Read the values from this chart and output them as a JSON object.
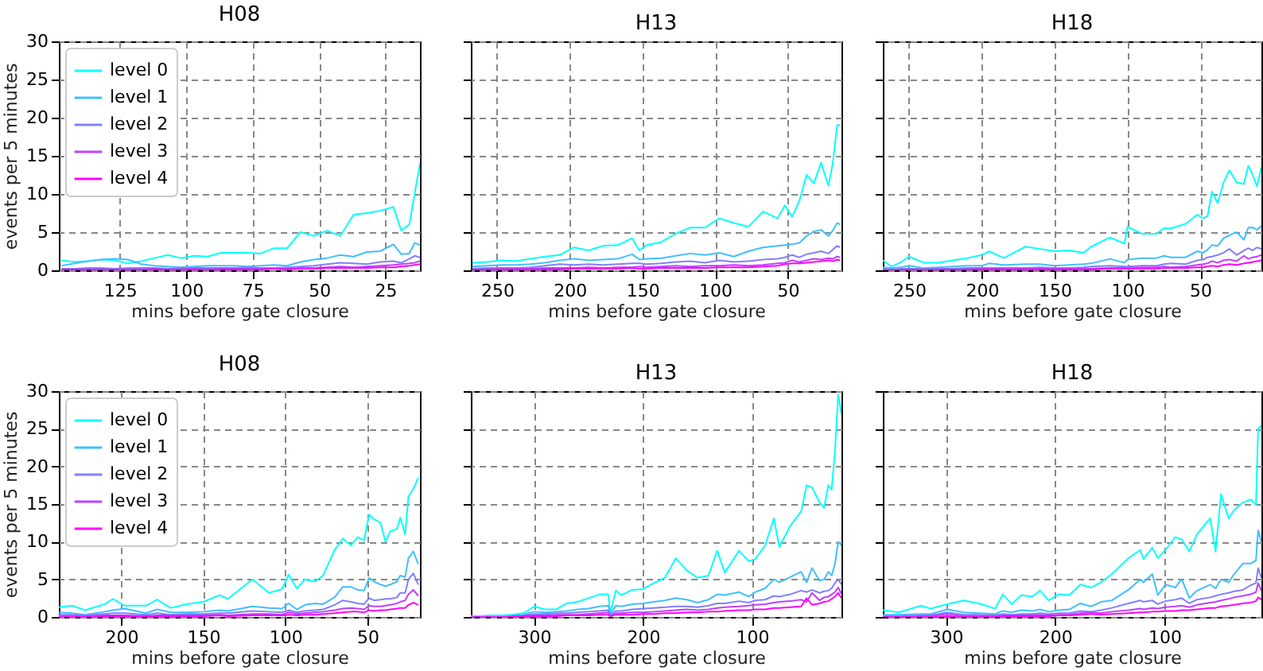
{
  "chart_data": [
    {
      "type": "line",
      "title": "H08",
      "xlabel": "mins before gate closure",
      "ylabel": "events per 5 minutes",
      "xlim": [
        148,
        12
      ],
      "xticks": [
        125,
        100,
        75,
        50,
        25
      ],
      "ylim": [
        0,
        30
      ],
      "yticks": [
        0,
        5,
        10,
        15,
        20,
        25,
        30
      ],
      "grid": true,
      "legend": "top left",
      "x": [
        147,
        142,
        137,
        132,
        127,
        122,
        117,
        112,
        107,
        102,
        97,
        92,
        87,
        82,
        77,
        72,
        67,
        62,
        57,
        52,
        47,
        42,
        37,
        32,
        27,
        22,
        19,
        16,
        14,
        12
      ],
      "series": [
        {
          "name": "level 0",
          "color": "#00ffff",
          "values": [
            1.3,
            1.1,
            1.2,
            1.4,
            1.3,
            0.9,
            1.2,
            1.6,
            2.0,
            1.6,
            1.9,
            1.8,
            2.3,
            2.3,
            2.3,
            2.2,
            2.9,
            2.9,
            5.0,
            4.5,
            5.2,
            4.5,
            7.3,
            7.5,
            7.8,
            8.3,
            5.2,
            6.0,
            10.0,
            14.0
          ]
        },
        {
          "name": "level 1",
          "color": "#40bfff",
          "values": [
            0.6,
            0.9,
            1.2,
            1.4,
            1.5,
            1.4,
            0.8,
            0.6,
            0.5,
            0.4,
            0.5,
            0.6,
            0.6,
            0.6,
            0.5,
            0.6,
            0.7,
            0.6,
            1.1,
            1.4,
            1.6,
            2.0,
            1.8,
            2.4,
            2.5,
            3.4,
            2.1,
            2.2,
            3.6,
            3.3
          ]
        },
        {
          "name": "level 2",
          "color": "#8080ff",
          "values": [
            0.2,
            0.2,
            0.3,
            0.3,
            0.2,
            0.3,
            0.3,
            0.3,
            0.2,
            0.3,
            0.3,
            0.3,
            0.3,
            0.3,
            0.4,
            0.3,
            0.3,
            0.4,
            0.5,
            0.6,
            0.8,
            1.0,
            0.9,
            0.8,
            1.1,
            1.2,
            1.0,
            1.5,
            1.9,
            1.7
          ]
        },
        {
          "name": "level 3",
          "color": "#bf40ff",
          "values": [
            0.1,
            0.1,
            0.1,
            0.1,
            0.1,
            0.1,
            0.1,
            0.2,
            0.1,
            0.1,
            0.2,
            0.1,
            0.2,
            0.2,
            0.2,
            0.2,
            0.2,
            0.2,
            0.3,
            0.3,
            0.4,
            0.5,
            0.4,
            0.5,
            0.6,
            0.7,
            0.8,
            0.9,
            1.0,
            1.2
          ]
        },
        {
          "name": "level 4",
          "color": "#ff00ff",
          "values": [
            0.1,
            0.1,
            0.1,
            0.1,
            0.1,
            0.1,
            0.1,
            0.1,
            0.1,
            0.1,
            0.1,
            0.1,
            0.1,
            0.1,
            0.1,
            0.1,
            0.2,
            0.1,
            0.2,
            0.2,
            0.3,
            0.3,
            0.3,
            0.3,
            0.4,
            0.4,
            0.5,
            0.6,
            0.7,
            0.8
          ]
        }
      ]
    },
    {
      "type": "line",
      "title": "H13",
      "xlabel": "mins before gate closure",
      "xlim": [
        268,
        13
      ],
      "xticks": [
        250,
        200,
        150,
        100,
        50
      ],
      "ylim": [
        0,
        30
      ],
      "yticks": [
        0,
        5,
        10,
        15,
        20,
        25,
        30
      ],
      "grid": true,
      "tick_labels": "x",
      "x": [
        267,
        257,
        247,
        237,
        227,
        217,
        207,
        197,
        187,
        177,
        167,
        157,
        152,
        147,
        137,
        127,
        117,
        107,
        97,
        87,
        77,
        67,
        57,
        52,
        47,
        42,
        37,
        32,
        27,
        22,
        19,
        16,
        14
      ],
      "series": [
        {
          "color": "#00ffff",
          "values": [
            1.0,
            1.1,
            1.3,
            1.2,
            1.5,
            1.8,
            2.0,
            3.0,
            2.6,
            3.2,
            3.3,
            4.2,
            2.6,
            3.3,
            3.7,
            4.8,
            5.6,
            5.6,
            6.8,
            6.2,
            5.7,
            7.7,
            6.8,
            8.5,
            7.0,
            9.1,
            12.5,
            11.4,
            14.1,
            11.1,
            14.0,
            19.0,
            19.0
          ]
        },
        {
          "color": "#40bfff",
          "values": [
            0.5,
            0.6,
            0.7,
            0.7,
            0.8,
            1.0,
            1.3,
            1.5,
            1.3,
            1.4,
            1.5,
            2.1,
            1.4,
            1.5,
            1.6,
            1.9,
            2.2,
            2.0,
            2.3,
            1.8,
            2.5,
            3.0,
            3.2,
            3.3,
            3.4,
            3.6,
            4.5,
            5.1,
            5.3,
            4.5,
            5.2,
            6.2,
            6.0
          ]
        },
        {
          "color": "#8080ff",
          "values": [
            0.2,
            0.3,
            0.3,
            0.3,
            0.4,
            0.6,
            0.8,
            0.7,
            0.8,
            0.7,
            0.8,
            0.9,
            0.9,
            0.8,
            0.9,
            1.1,
            1.2,
            1.0,
            1.3,
            1.1,
            1.2,
            1.4,
            1.5,
            1.7,
            2.0,
            1.7,
            2.1,
            2.3,
            2.5,
            2.2,
            2.7,
            3.2,
            3.0
          ]
        },
        {
          "color": "#bf40ff",
          "values": [
            0.1,
            0.1,
            0.2,
            0.2,
            0.2,
            0.3,
            0.3,
            0.3,
            0.4,
            0.3,
            0.4,
            0.4,
            0.5,
            0.4,
            0.5,
            0.6,
            0.5,
            0.6,
            0.6,
            0.7,
            0.6,
            0.7,
            0.9,
            1.0,
            1.3,
            1.1,
            1.3,
            1.5,
            1.4,
            1.6,
            1.5,
            1.8,
            1.7
          ]
        },
        {
          "color": "#ff00ff",
          "values": [
            0.1,
            0.1,
            0.1,
            0.1,
            0.1,
            0.1,
            0.1,
            0.2,
            0.2,
            0.2,
            0.2,
            0.3,
            0.2,
            0.2,
            0.3,
            0.3,
            0.3,
            0.3,
            0.4,
            0.4,
            0.4,
            0.5,
            0.6,
            0.8,
            0.9,
            0.9,
            1.0,
            1.1,
            1.2,
            1.3,
            1.2,
            1.4,
            1.3
          ]
        }
      ]
    },
    {
      "type": "line",
      "title": "H18",
      "xlabel": "mins before gate closure",
      "xlim": [
        268,
        8
      ],
      "xticks": [
        250,
        200,
        150,
        100,
        50
      ],
      "ylim": [
        0,
        30
      ],
      "yticks": [
        0,
        5,
        10,
        15,
        20,
        25,
        30
      ],
      "grid": true,
      "tick_labels": "x",
      "x": [
        268,
        262,
        256,
        250,
        240,
        230,
        220,
        210,
        200,
        195,
        185,
        170,
        160,
        150,
        140,
        130,
        125,
        112,
        102,
        100,
        90,
        80,
        75,
        70,
        60,
        52,
        48,
        45,
        42,
        38,
        34,
        30,
        25,
        20,
        17,
        14,
        11,
        8
      ],
      "series": [
        {
          "color": "#00ffff",
          "values": [
            1.3,
            0.5,
            1.0,
            1.8,
            1.0,
            1.0,
            1.3,
            1.6,
            2.0,
            2.5,
            1.6,
            3.1,
            2.8,
            2.5,
            2.6,
            2.3,
            3.1,
            4.3,
            3.5,
            5.7,
            4.8,
            4.8,
            5.5,
            5.5,
            6.1,
            7.3,
            6.8,
            7.1,
            10.3,
            8.8,
            11.5,
            13.1,
            11.5,
            11.3,
            13.7,
            12.5,
            11.0,
            13.5
          ]
        },
        {
          "color": "#40bfff",
          "values": [
            0.4,
            0.3,
            0.4,
            0.6,
            0.3,
            0.4,
            0.5,
            0.6,
            0.6,
            0.9,
            0.7,
            0.8,
            0.8,
            0.6,
            0.7,
            0.8,
            0.9,
            1.5,
            1.0,
            1.4,
            1.6,
            1.6,
            1.9,
            1.7,
            1.7,
            2.5,
            2.3,
            2.7,
            3.3,
            3.2,
            4.2,
            4.6,
            5.0,
            4.0,
            5.6,
            5.6,
            5.3,
            5.8
          ]
        },
        {
          "color": "#8080ff",
          "values": [
            0.2,
            0.1,
            0.2,
            0.2,
            0.2,
            0.2,
            0.2,
            0.3,
            0.3,
            0.3,
            0.3,
            0.3,
            0.4,
            0.3,
            0.3,
            0.4,
            0.5,
            0.6,
            0.5,
            0.5,
            0.6,
            0.6,
            0.8,
            0.9,
            0.8,
            1.3,
            1.4,
            1.7,
            1.8,
            2.0,
            2.3,
            2.8,
            2.0,
            2.6,
            2.9,
            2.6,
            3.0,
            2.8
          ]
        },
        {
          "color": "#bf40ff",
          "values": [
            0.1,
            0.1,
            0.1,
            0.1,
            0.1,
            0.1,
            0.1,
            0.1,
            0.2,
            0.2,
            0.2,
            0.2,
            0.2,
            0.2,
            0.2,
            0.2,
            0.2,
            0.3,
            0.3,
            0.3,
            0.4,
            0.4,
            0.5,
            0.4,
            0.5,
            0.7,
            0.8,
            0.9,
            1.2,
            1.0,
            1.3,
            1.4,
            1.2,
            1.9,
            1.5,
            1.7,
            1.8,
            2.0
          ]
        },
        {
          "color": "#ff00ff",
          "values": [
            0.0,
            0.0,
            0.0,
            0.0,
            0.0,
            0.1,
            0.1,
            0.1,
            0.1,
            0.1,
            0.1,
            0.1,
            0.1,
            0.1,
            0.1,
            0.1,
            0.1,
            0.2,
            0.2,
            0.2,
            0.2,
            0.2,
            0.3,
            0.3,
            0.3,
            0.4,
            0.4,
            0.5,
            0.6,
            0.5,
            0.7,
            0.8,
            0.7,
            0.9,
            1.0,
            1.1,
            1.2,
            1.3
          ]
        }
      ]
    },
    {
      "type": "line",
      "title": "H08",
      "xlabel": "mins before gate closure",
      "ylabel": "events per 5 minutes",
      "xlim": [
        238,
        18
      ],
      "xticks": [
        200,
        150,
        100,
        50
      ],
      "ylim": [
        0,
        30
      ],
      "yticks": [
        0,
        5,
        10,
        15,
        20,
        25,
        30
      ],
      "grid": true,
      "legend": "top left",
      "x": [
        238,
        230,
        222,
        210,
        205,
        198,
        185,
        178,
        170,
        160,
        150,
        140,
        135,
        120,
        110,
        102,
        98,
        93,
        88,
        82,
        77,
        70,
        65,
        60,
        56,
        52,
        49,
        46,
        42,
        39,
        36,
        32,
        30,
        27,
        25,
        22,
        19
      ],
      "series": [
        {
          "name": "level 0",
          "color": "#00ffff",
          "values": [
            1.3,
            1.5,
            0.9,
            1.7,
            2.4,
            1.5,
            1.5,
            2.3,
            1.2,
            1.7,
            2.0,
            2.9,
            2.4,
            5.0,
            3.2,
            3.7,
            5.6,
            3.8,
            5.0,
            4.7,
            5.5,
            8.9,
            10.4,
            9.5,
            10.6,
            10.2,
            13.6,
            13.0,
            12.5,
            10.0,
            11.4,
            11.7,
            13.2,
            11.0,
            16.0,
            17.0,
            18.5
          ]
        },
        {
          "name": "level 1",
          "color": "#40bfff",
          "values": [
            0.6,
            0.5,
            0.3,
            0.7,
            0.9,
            1.1,
            0.5,
            1.0,
            0.6,
            0.6,
            0.7,
            0.9,
            0.8,
            1.4,
            1.2,
            1.1,
            1.8,
            1.0,
            1.6,
            1.8,
            1.7,
            2.6,
            4.0,
            4.0,
            3.6,
            3.5,
            5.2,
            4.7,
            4.3,
            4.1,
            4.3,
            4.7,
            5.5,
            5.3,
            7.8,
            8.7,
            7.0
          ]
        },
        {
          "name": "level 2",
          "color": "#8080ff",
          "values": [
            0.3,
            0.3,
            0.2,
            0.4,
            0.5,
            0.5,
            0.3,
            0.5,
            0.3,
            0.4,
            0.4,
            0.5,
            0.5,
            0.8,
            0.7,
            0.6,
            0.9,
            0.6,
            0.8,
            0.9,
            1.0,
            1.6,
            2.2,
            2.0,
            1.8,
            1.7,
            2.5,
            2.2,
            2.3,
            2.4,
            2.4,
            2.6,
            3.2,
            3.2,
            5.0,
            5.8,
            4.3
          ]
        },
        {
          "name": "level 3",
          "color": "#bf40ff",
          "values": [
            0.1,
            0.1,
            0.1,
            0.2,
            0.2,
            0.2,
            0.1,
            0.2,
            0.2,
            0.2,
            0.2,
            0.3,
            0.2,
            0.4,
            0.4,
            0.3,
            0.6,
            0.4,
            0.5,
            0.6,
            0.7,
            0.9,
            1.1,
            1.2,
            1.1,
            1.0,
            1.5,
            1.4,
            1.4,
            1.5,
            1.6,
            1.8,
            2.0,
            2.2,
            3.0,
            3.6,
            2.8
          ]
        },
        {
          "name": "level 4",
          "color": "#ff00ff",
          "values": [
            0.0,
            0.0,
            0.0,
            0.1,
            0.1,
            0.1,
            0.1,
            0.1,
            0.1,
            0.1,
            0.1,
            0.2,
            0.1,
            0.2,
            0.2,
            0.2,
            0.3,
            0.2,
            0.3,
            0.3,
            0.4,
            0.5,
            0.6,
            0.7,
            0.7,
            0.6,
            0.9,
            0.8,
            0.9,
            0.9,
            1.0,
            1.1,
            1.2,
            1.2,
            1.6,
            1.9,
            1.6
          ]
        }
      ]
    },
    {
      "type": "line",
      "title": "H13",
      "xlabel": "mins before gate closure",
      "xlim": [
        358,
        18
      ],
      "xticks": [
        300,
        200,
        100
      ],
      "ylim": [
        0,
        30
      ],
      "yticks": [
        0,
        5,
        10,
        15,
        20,
        25,
        30
      ],
      "grid": true,
      "tick_labels": "x",
      "x": [
        358,
        350,
        340,
        330,
        320,
        310,
        305,
        300,
        290,
        280,
        270,
        260,
        250,
        240,
        232,
        230,
        225,
        220,
        210,
        200,
        190,
        180,
        170,
        160,
        150,
        140,
        132,
        125,
        112,
        103,
        97,
        88,
        80,
        75,
        65,
        55,
        50,
        45,
        38,
        34,
        30,
        27,
        24,
        21,
        18
      ],
      "series": [
        {
          "color": "#00ffff",
          "values": [
            0.1,
            0.1,
            0.2,
            0.2,
            0.3,
            0.5,
            0.9,
            1.4,
            1.0,
            1.0,
            1.8,
            2.0,
            2.5,
            3.0,
            3.0,
            0.5,
            3.5,
            2.9,
            3.6,
            3.7,
            4.5,
            5.2,
            7.8,
            6.2,
            5.2,
            5.5,
            8.8,
            5.9,
            8.8,
            7.4,
            7.7,
            9.5,
            13.1,
            9.3,
            12.1,
            14.0,
            17.5,
            17.2,
            15.2,
            14.5,
            17.5,
            16.9,
            22.0,
            29.5,
            27.0
          ]
        },
        {
          "color": "#40bfff",
          "values": [
            null,
            null,
            null,
            null,
            0.2,
            0.3,
            0.5,
            0.7,
            0.6,
            0.7,
            0.8,
            1.0,
            1.1,
            1.4,
            1.5,
            0.3,
            1.5,
            1.4,
            1.7,
            1.8,
            2.0,
            2.2,
            2.5,
            2.3,
            1.9,
            2.3,
            3.0,
            2.9,
            3.3,
            2.7,
            3.3,
            3.8,
            5.0,
            4.6,
            5.3,
            6.0,
            4.6,
            6.5,
            4.8,
            5.0,
            6.0,
            5.5,
            7.0,
            10.0,
            9.5
          ]
        },
        {
          "color": "#8080ff",
          "values": [
            null,
            null,
            null,
            null,
            null,
            0.2,
            0.3,
            0.4,
            0.4,
            0.5,
            0.5,
            0.6,
            0.7,
            0.8,
            0.9,
            0.2,
            0.8,
            0.8,
            1.0,
            1.1,
            1.2,
            1.3,
            1.4,
            1.4,
            1.3,
            1.5,
            1.8,
            1.8,
            2.1,
            1.9,
            2.2,
            2.3,
            2.8,
            2.7,
            3.0,
            3.5,
            3.3,
            3.6,
            3.2,
            3.4,
            3.5,
            3.8,
            4.5,
            5.0,
            4.3
          ]
        },
        {
          "color": "#bf40ff",
          "values": [
            null,
            null,
            0.0,
            0.0,
            0.1,
            0.1,
            0.2,
            0.2,
            0.2,
            0.3,
            0.3,
            0.3,
            0.4,
            0.5,
            0.6,
            0.1,
            0.5,
            0.5,
            0.6,
            0.6,
            0.7,
            0.8,
            0.9,
            1.0,
            0.9,
            1.0,
            1.2,
            1.3,
            1.4,
            1.5,
            1.6,
            1.7,
            1.9,
            2.0,
            2.1,
            2.3,
            2.0,
            3.2,
            2.2,
            2.6,
            2.7,
            3.0,
            3.3,
            3.9,
            3.1
          ]
        },
        {
          "color": "#ff00ff",
          "values": [
            0.0,
            0.0,
            0.0,
            0.0,
            0.0,
            0.1,
            0.1,
            0.1,
            0.1,
            0.1,
            0.2,
            0.2,
            0.2,
            0.3,
            0.3,
            0.1,
            0.3,
            0.3,
            0.3,
            0.4,
            0.4,
            0.5,
            0.5,
            0.6,
            0.6,
            0.7,
            0.7,
            0.8,
            0.9,
            0.9,
            1.0,
            1.0,
            1.2,
            1.2,
            1.3,
            1.4,
            2.5,
            1.6,
            1.8,
            2.0,
            2.1,
            2.4,
            2.7,
            3.2,
            2.5
          ]
        }
      ]
    },
    {
      "type": "line",
      "title": "H18",
      "xlabel": "mins before gate closure",
      "xlim": [
        358,
        11
      ],
      "xticks": [
        300,
        200,
        100
      ],
      "ylim": [
        0,
        30
      ],
      "yticks": [
        0,
        5,
        10,
        15,
        20,
        25,
        30
      ],
      "grid": true,
      "tick_labels": "x",
      "x": [
        358,
        343,
        323,
        314,
        299,
        284,
        270,
        255,
        248,
        240,
        231,
        221,
        214,
        206,
        197,
        187,
        177,
        167,
        158,
        148,
        133,
        122,
        119,
        111,
        106,
        99,
        90,
        84,
        77,
        70,
        58,
        53,
        48,
        41,
        36,
        28,
        21,
        16,
        14,
        11
      ],
      "series": [
        {
          "color": "#00ffff",
          "values": [
            0.9,
            0.6,
            1.5,
            1.1,
            1.7,
            2.2,
            1.8,
            1.1,
            3.0,
            1.7,
            2.9,
            2.7,
            3.5,
            2.2,
            3.0,
            2.9,
            4.3,
            3.9,
            4.6,
            5.7,
            7.8,
            8.9,
            7.7,
            9.2,
            7.8,
            8.9,
            10.6,
            10.3,
            8.7,
            11.0,
            13.1,
            8.7,
            16.3,
            13.1,
            14.2,
            15.2,
            15.6,
            14.9,
            25.0,
            25.4
          ]
        },
        {
          "color": "#40bfff",
          "values": [
            0.3,
            0.3,
            0.4,
            0.4,
            1.0,
            0.6,
            0.5,
            0.4,
            0.8,
            0.6,
            0.9,
            0.8,
            1.0,
            0.7,
            0.9,
            1.0,
            1.8,
            1.4,
            2.0,
            2.2,
            3.6,
            5.0,
            4.6,
            5.7,
            2.9,
            4.3,
            3.9,
            5.0,
            2.5,
            3.5,
            4.3,
            3.8,
            5.0,
            4.6,
            5.7,
            7.1,
            7.1,
            7.5,
            11.5,
            10.0
          ]
        },
        {
          "color": "#8080ff",
          "values": [
            0.1,
            0.1,
            0.2,
            0.2,
            0.6,
            0.3,
            0.3,
            0.2,
            0.4,
            0.3,
            0.4,
            0.4,
            0.5,
            0.4,
            0.5,
            0.5,
            0.8,
            0.7,
            0.9,
            1.2,
            1.8,
            2.2,
            2.0,
            2.2,
            1.7,
            2.1,
            2.3,
            2.5,
            1.8,
            2.3,
            2.6,
            2.8,
            3.0,
            3.2,
            3.4,
            3.6,
            4.2,
            4.5,
            6.5,
            5.2
          ]
        },
        {
          "color": "#bf40ff",
          "values": [
            0.0,
            0.0,
            0.1,
            0.1,
            0.4,
            0.1,
            0.1,
            0.1,
            0.2,
            0.2,
            0.2,
            0.2,
            0.3,
            0.2,
            0.3,
            0.3,
            0.5,
            0.6,
            0.5,
            0.7,
            0.9,
            1.1,
            1.0,
            1.2,
            1.1,
            1.3,
            1.4,
            1.5,
            1.3,
            1.6,
            1.9,
            2.0,
            2.2,
            2.4,
            2.6,
            2.8,
            3.0,
            3.3,
            4.5,
            3.5
          ]
        },
        {
          "color": "#ff00ff",
          "values": [
            0.0,
            0.0,
            0.0,
            0.0,
            0.1,
            0.0,
            0.0,
            0.0,
            0.1,
            0.1,
            0.1,
            0.1,
            0.1,
            0.1,
            0.2,
            0.2,
            0.3,
            0.4,
            0.3,
            0.4,
            0.5,
            0.6,
            0.6,
            0.7,
            0.7,
            0.8,
            0.8,
            0.9,
            0.9,
            1.0,
            1.2,
            1.2,
            1.4,
            1.5,
            1.6,
            1.8,
            1.9,
            2.1,
            2.6,
            2.3
          ]
        }
      ]
    }
  ]
}
